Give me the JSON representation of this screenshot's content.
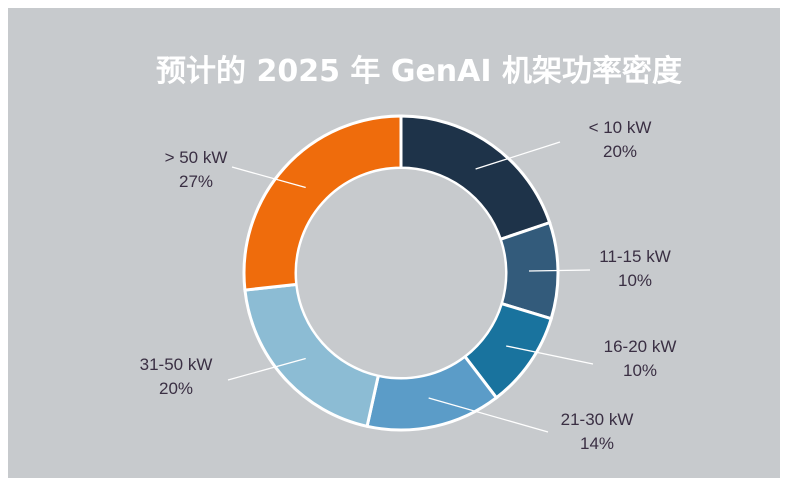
{
  "chart_data": {
    "type": "pie",
    "title": "预计的 2025 年 GenAI 机架功率密度",
    "categories": [
      "< 10 kW",
      "11-15 kW",
      "16-20 kW",
      "21-30 kW",
      "31-50 kW",
      "> 50 kW"
    ],
    "values": [
      20,
      10,
      10,
      14,
      20,
      27
    ],
    "value_labels": [
      "20%",
      "10%",
      "10%",
      "14%",
      "20%",
      "27%"
    ],
    "unit": "%",
    "donut": true,
    "legend": "none",
    "xlabel": "",
    "ylabel": ""
  },
  "colors": {
    "background": "#c7cacd",
    "page": "#ffffff",
    "title": "#ffffff",
    "label_text": "#3a2f43",
    "leader_line": "#ffffff",
    "slice_border": "#ffffff",
    "hole": "#c7cacd",
    "slices": [
      "#1e3349",
      "#335b7b",
      "#19739e",
      "#5b9cc8",
      "#8cbcd4",
      "#ef6c0c"
    ]
  }
}
